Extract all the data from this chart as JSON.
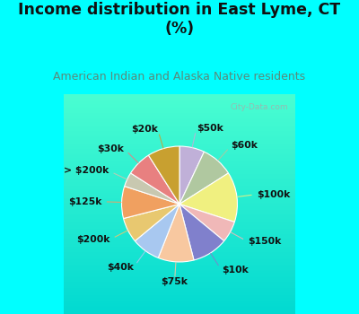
{
  "title": "Income distribution in East Lyme, CT\n(%)",
  "subtitle": "American Indian and Alaska Native residents",
  "title_color": "#111111",
  "subtitle_color": "#5a8a7a",
  "bg_top": "#00FFFF",
  "bg_chart_color": "#d8f0e8",
  "labels": [
    "$50k",
    "$60k",
    "$100k",
    "$150k",
    "$10k",
    "$75k",
    "$40k",
    "$200k",
    "$125k",
    "> $200k",
    "$30k",
    "$20k"
  ],
  "values": [
    7,
    9,
    14,
    6,
    10,
    10,
    8,
    7,
    9,
    4,
    7,
    9
  ],
  "colors": [
    "#c0b0d8",
    "#b0c8a0",
    "#f0f080",
    "#f0b8b8",
    "#8080cc",
    "#f8c8a0",
    "#a8c8f0",
    "#e8c870",
    "#f0a060",
    "#c8c8b0",
    "#e88080",
    "#c8a030"
  ],
  "wedge_edge_color": "#ffffff",
  "label_fontsize": 7.8,
  "title_fontsize": 12.5,
  "subtitle_fontsize": 9
}
